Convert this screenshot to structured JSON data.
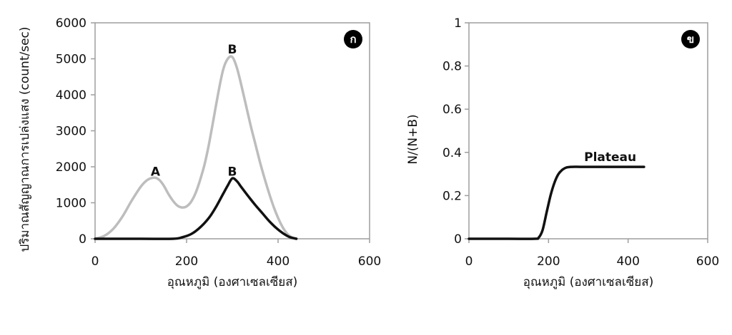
{
  "chart_data": [
    {
      "type": "line",
      "panel_label": "ก",
      "xlabel": "อุณหภูมิ (องศาเซลเซียส)",
      "ylabel": "ปริมาณสัญญาณการเปล่งแสง (count/sec)",
      "xlim": [
        0,
        600
      ],
      "ylim": [
        0,
        6000
      ],
      "xticks": [
        "0",
        "200",
        "400",
        "600"
      ],
      "yticks": [
        "0",
        "1000",
        "2000",
        "3000",
        "4000",
        "5000",
        "6000"
      ],
      "series": [
        {
          "color": "#bdbdbd",
          "x": [
            0,
            20,
            40,
            60,
            80,
            100,
            115,
            130,
            140,
            150,
            160,
            170,
            180,
            190,
            200,
            210,
            220,
            230,
            240,
            250,
            260,
            270,
            280,
            290,
            300,
            310,
            320,
            330,
            340,
            350,
            360,
            370,
            380,
            390,
            400,
            410,
            420,
            430,
            440
          ],
          "y": [
            0,
            80,
            280,
            620,
            1060,
            1450,
            1640,
            1700,
            1640,
            1480,
            1250,
            1060,
            920,
            870,
            900,
            1030,
            1280,
            1650,
            2100,
            2700,
            3400,
            4100,
            4700,
            5000,
            5050,
            4750,
            4250,
            3700,
            3150,
            2650,
            2150,
            1700,
            1280,
            900,
            580,
            320,
            140,
            40,
            0
          ]
        },
        {
          "color": "#111111",
          "x": [
            0,
            100,
            170,
            190,
            210,
            230,
            250,
            265,
            280,
            290,
            300,
            310,
            320,
            335,
            350,
            365,
            380,
            395,
            410,
            425,
            440
          ],
          "y": [
            0,
            0,
            0,
            40,
            130,
            320,
            600,
            900,
            1250,
            1480,
            1680,
            1600,
            1430,
            1180,
            940,
            720,
            500,
            310,
            160,
            50,
            0
          ]
        }
      ],
      "annotations": [
        {
          "text": "A",
          "x": 132,
          "y": 1750
        },
        {
          "text": "B",
          "x": 300,
          "y": 5150
        },
        {
          "text": "B",
          "x": 300,
          "y": 1750
        }
      ]
    },
    {
      "type": "line",
      "panel_label": "ข",
      "xlabel": "อุณหภูมิ (องศาเซลเซียส)",
      "ylabel": "N/(N+B)",
      "xlim": [
        0,
        600
      ],
      "ylim": [
        0,
        1
      ],
      "xticks": [
        "0",
        "200",
        "400",
        "600"
      ],
      "yticks": [
        "0",
        "0.2",
        "0.4",
        "0.6",
        "0.8",
        "1"
      ],
      "series": [
        {
          "color": "#111111",
          "x": [
            0,
            100,
            165,
            175,
            185,
            195,
            205,
            215,
            225,
            235,
            245,
            260,
            280,
            320,
            380,
            440
          ],
          "y": [
            0,
            0,
            0,
            0.005,
            0.04,
            0.12,
            0.2,
            0.26,
            0.3,
            0.32,
            0.33,
            0.333,
            0.333,
            0.333,
            0.333,
            0.333
          ]
        }
      ],
      "annotations": [
        {
          "text": "Plateau",
          "x": 355,
          "y": 0.36
        }
      ]
    }
  ]
}
